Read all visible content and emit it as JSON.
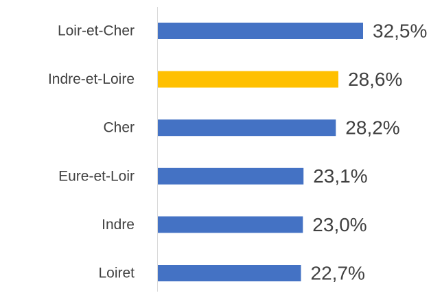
{
  "chart_data": {
    "type": "bar",
    "orientation": "horizontal",
    "categories": [
      "Loir-et-Cher",
      "Indre-et-Loire",
      "Cher",
      "Eure-et-Loir",
      "Indre",
      "Loiret"
    ],
    "values": [
      32.5,
      28.6,
      28.2,
      23.1,
      23.0,
      22.7
    ],
    "value_labels": [
      "32,5%",
      "28,6%",
      "28,2%",
      "23,1%",
      "23,0%",
      "22,7%"
    ],
    "colors": [
      "#4472c4",
      "#ffc000",
      "#4472c4",
      "#4472c4",
      "#4472c4",
      "#4472c4"
    ],
    "grid": false
  }
}
